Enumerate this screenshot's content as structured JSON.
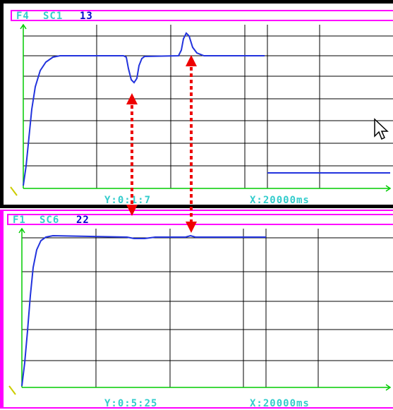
{
  "colors": {
    "grid": "#000000",
    "axis": "#00cc00",
    "trace": "#2233dd",
    "frame": "#ff00ff",
    "label": "#33cccc",
    "channel": "#0000cc",
    "arrow": "#ee0000"
  },
  "top_panel": {
    "header": {
      "fn": "F4",
      "sc": "SC1",
      "num": "13"
    },
    "y_readout": "Y:0:1:7",
    "x_readout": "X:20000ms"
  },
  "bottom_panel": {
    "header": {
      "fn": "F1",
      "sc": "SC6",
      "num": "22"
    },
    "y_readout": "Y:0:5:25",
    "x_readout": "X:20000ms"
  },
  "icons": {
    "cursor": "mouse-pointer-icon",
    "arrows": "red-dotted-double-arrow-icon"
  }
}
